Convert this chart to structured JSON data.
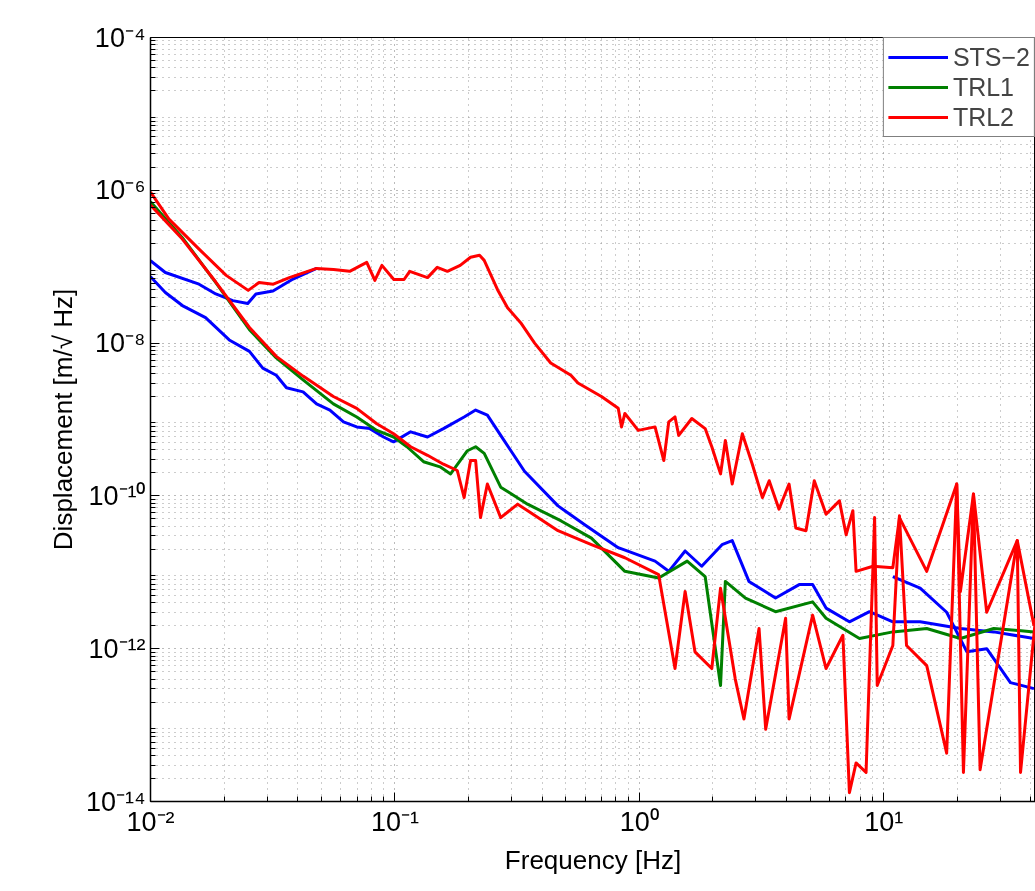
{
  "chart_data": {
    "type": "line",
    "xlabel": "Frequency [Hz]",
    "ylabel": "Displacement [m/√ Hz]",
    "log": "xy",
    "grid": true,
    "legend": "top right",
    "line_style": "solid",
    "xlim": [
      0.01,
      41.8
    ],
    "ylim": [
      1e-14,
      0.0001
    ],
    "xticks": [
      {
        "value": 0.01,
        "label": "10⁻²"
      },
      {
        "value": 0.1,
        "label": "10⁻¹"
      },
      {
        "value": 1,
        "label": "10⁰"
      },
      {
        "value": 10,
        "label": "10¹"
      }
    ],
    "yticks": [
      {
        "value": 1e-14,
        "label": "10⁻¹⁴"
      },
      {
        "value": 1e-12,
        "label": "10⁻¹²"
      },
      {
        "value": 1e-10,
        "label": "10⁻¹⁰"
      },
      {
        "value": 1e-08,
        "label": "10⁻⁸"
      },
      {
        "value": 1e-06,
        "label": "10⁻⁶"
      },
      {
        "value": 0.0001,
        "label": "10⁻⁴"
      }
    ],
    "series": [
      {
        "name": "STS−2",
        "color": "#0000ff",
        "x": [
          0.01,
          0.0115,
          0.0135,
          0.0168,
          0.021,
          0.0254,
          0.0288,
          0.0327,
          0.036,
          0.0421,
          0.0478,
          0.0542,
          0.0616,
          0.0698,
          0.079,
          0.0898,
          0.0988,
          0.116,
          0.136,
          0.158,
          0.192,
          0.214,
          0.239,
          0.28,
          0.339,
          0.465,
          0.598,
          0.82,
          1.16,
          1.32,
          1.54,
          1.8,
          2.18,
          2.4,
          2.81,
          3.61,
          4.51,
          5.12,
          5.81,
          7.24,
          8.75,
          10.9,
          14.1,
          20.6,
          28.2,
          41.2
        ],
        "values": [
          7.4e-08,
          4.6e-08,
          3.1e-08,
          2.15e-08,
          1.1e-08,
          7.8e-09,
          4.7e-09,
          3.8e-09,
          2.6e-09,
          2.3e-09,
          1.6e-09,
          1.33e-09,
          9.3e-10,
          8e-10,
          7.6e-10,
          5.9e-10,
          5.1e-10,
          6.9e-10,
          5.9e-10,
          7.6e-10,
          1.08e-09,
          1.33e-09,
          1.14e-09,
          5.3e-10,
          2.1e-10,
          7.4e-11,
          4.2e-11,
          2.1e-11,
          1.4e-11,
          1.03e-11,
          1.9e-11,
          1.2e-11,
          2.3e-11,
          2.6e-11,
          7.6e-12,
          4.6e-12,
          6.9e-12,
          6.9e-12,
          3.4e-12,
          2.25e-12,
          3.05e-12,
          2.25e-12,
          2.25e-12,
          1.84e-12,
          1.66e-12,
          1.36e-12
        ]
      },
      {
        "color": "#0000ff",
        "x": [
          0.01,
          0.0115,
          0.0158,
          0.0185,
          0.0217,
          0.025,
          0.027,
          0.0317,
          0.0383,
          0.0478,
          7.96,
          10.9,
          14.1,
          18.1,
          21.9,
          26.4,
          33.0,
          41.2
        ],
        "values": [
          1.2e-07,
          8.4e-08,
          5.9e-08,
          4.4e-08,
          3.6e-08,
          3.3e-08,
          4.4e-08,
          4.8e-08,
          6.9e-08,
          9.5e-08,
          null,
          8.8e-12,
          6.2e-12,
          3e-12,
          9.1e-13,
          1e-12,
          3.6e-13,
          3e-13
        ]
      },
      {
        "name": "TRL1",
        "color": "#008000",
        "x": [
          0.01,
          0.0135,
          0.0185,
          0.0254,
          0.0327,
          0.0421,
          0.056,
          0.0698,
          0.0843,
          0.0988,
          0.112,
          0.131,
          0.153,
          0.169,
          0.198,
          0.214,
          0.232,
          0.271,
          0.349,
          0.479,
          0.637,
          0.873,
          1.2,
          1.57,
          1.86,
          2.15,
          2.25,
          2.72,
          3.61,
          5.12,
          5.81,
          7.96,
          10.9,
          15.0,
          20.6,
          28.2,
          41.2
        ],
        "values": [
          7.1e-07,
          2.4e-07,
          6.2e-08,
          1.5e-08,
          6.4e-09,
          3.3e-09,
          1.6e-09,
          1.08e-09,
          7.2e-10,
          5.9e-10,
          4.4e-10,
          2.8e-10,
          2.4e-10,
          1.94e-10,
          3.9e-10,
          4.4e-10,
          3.6e-10,
          1.3e-10,
          7.8e-11,
          4.7e-11,
          2.8e-11,
          1.03e-11,
          8.4e-12,
          1.4e-11,
          8.8e-12,
          3.3e-13,
          7.6e-12,
          4.6e-12,
          3.05e-12,
          4.1e-12,
          2.5e-12,
          1.36e-12,
          1.66e-12,
          1.84e-12,
          1.36e-12,
          1.84e-12,
          1.66e-12
        ]
      },
      {
        "name": "TRL2",
        "color": "#ff0000",
        "x": [
          0.01,
          0.0135,
          0.0185,
          0.0254,
          0.0327,
          0.0421,
          0.056,
          0.0698,
          0.0843,
          0.0988,
          0.116,
          0.136,
          0.158,
          0.18,
          0.192,
          0.204,
          0.214,
          0.224,
          0.239,
          0.271,
          0.318,
          0.465,
          0.637,
          0.873,
          1.2,
          1.4,
          1.54,
          1.69,
          1.98,
          2.15,
          2.47,
          2.68,
          3.09,
          3.29,
          3.97,
          4.1,
          5.12,
          5.81,
          6.81,
          7.24,
          7.71,
          8.47,
          9.18,
          9.41,
          10.9,
          11.6,
          12.4,
          15.0,
          18.1,
          19.9,
          21.2,
          23.3,
          24.8,
          28.2,
          35.2,
          36.3,
          41.8
        ],
        "values": [
          6.4e-07,
          2.3e-07,
          6.3e-08,
          1.6e-08,
          6.7e-09,
          3.7e-09,
          2e-09,
          1.4e-09,
          8.8e-10,
          6.5e-10,
          4.4e-10,
          3.4e-10,
          2.6e-10,
          2.15e-10,
          9.5e-11,
          2.9e-10,
          2.9e-10,
          5.2e-11,
          1.43e-10,
          5.2e-11,
          7.8e-11,
          3.5e-11,
          2.3e-11,
          1.55e-11,
          9.3e-12,
          5.5e-13,
          5.6e-12,
          9.1e-13,
          5.5e-13,
          6.2e-12,
          4e-13,
          1.2e-13,
          1.84e-12,
          8.8e-14,
          2.5e-12,
          1.2e-13,
          2.75e-12,
          5.5e-13,
          1.5e-12,
          1.3e-14,
          3.2e-14,
          2.4e-14,
          5.2e-11,
          3.3e-13,
          1.1e-12,
          5.5e-11,
          1.1e-12,
          6e-13,
          4.3e-14,
          1.43e-10,
          2.4e-14,
          1.06e-10,
          2.6e-14,
          3.3e-13,
          2.6e-11,
          2.4e-14,
          2.5e-12
        ]
      },
      {
        "color": "#ff0000",
        "x": [
          0.01,
          0.0119,
          0.0158,
          0.0204,
          0.0251,
          0.0278,
          0.0318,
          0.037,
          0.0478,
          0.0561,
          0.0653,
          0.0767,
          0.0828,
          0.0885,
          0.099,
          0.109,
          0.115,
          0.136,
          0.149,
          0.164,
          0.185,
          0.204,
          0.222,
          0.232,
          0.263,
          0.289,
          0.327,
          0.373,
          0.434,
          0.525,
          0.561,
          0.7,
          0.82,
          0.846,
          0.873,
          0.99,
          1.16,
          1.26,
          1.32,
          1.4,
          1.45,
          1.64,
          1.86,
          1.98,
          2.15,
          2.25,
          2.4,
          2.64,
          2.9,
          3.19,
          3.4,
          3.73,
          4.1,
          4.37,
          4.81,
          5.2,
          5.81,
          6.59,
          7.02,
          7.48,
          7.71,
          9.04,
          10.9,
          11.6,
          15.0,
          19.9,
          20.6,
          23.3,
          26.4,
          35.2,
          41.2
        ],
        "values": [
          9.5e-07,
          4.2e-07,
          1.7e-07,
          7.7e-08,
          4.9e-08,
          6.2e-08,
          5.9e-08,
          7.2e-08,
          9.5e-08,
          9.2e-08,
          8.7e-08,
          1.14e-07,
          6.6e-08,
          1.04e-07,
          6.8e-08,
          6.8e-08,
          8.7e-08,
          7.2e-08,
          9.8e-08,
          8.7e-08,
          1.04e-07,
          1.33e-07,
          1.41e-07,
          1.21e-07,
          5e-08,
          2.9e-08,
          1.85e-08,
          1e-08,
          5.5e-09,
          3.8e-09,
          3e-09,
          2e-09,
          1.4e-09,
          8e-10,
          1.2e-09,
          7.2e-10,
          8e-10,
          2.9e-10,
          9.3e-10,
          1.08e-09,
          6.2e-10,
          1.03e-09,
          7.6e-10,
          4.4e-10,
          1.94e-10,
          5.3e-10,
          1.43e-10,
          6.5e-10,
          2.6e-10,
          9.5e-11,
          1.58e-10,
          6.7e-11,
          1.43e-10,
          3.8e-11,
          3.5e-11,
          1.58e-10,
          5.75e-11,
          8.6e-11,
          3.1e-11,
          6.4e-11,
          1.03e-11,
          1.2e-11,
          1.15e-11,
          5.2e-11,
          1.03e-11,
          1.43e-10,
          5.6e-12,
          1.06e-10,
          3e-12,
          2.6e-11,
          2e-12
        ]
      }
    ]
  }
}
